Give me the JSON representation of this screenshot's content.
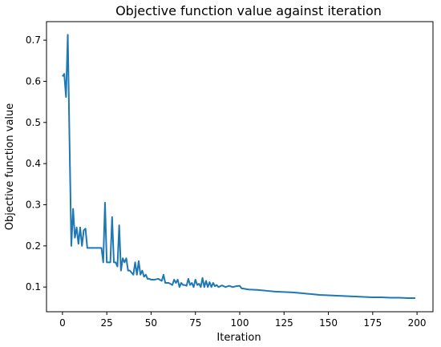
{
  "chart_data": {
    "type": "line",
    "title": "Objective function value against iteration",
    "xlabel": "Iteration",
    "ylabel": "Objective function value",
    "xlim": [
      -9,
      209
    ],
    "ylim": [
      0.04,
      0.745
    ],
    "xticks": [
      0,
      25,
      50,
      75,
      100,
      125,
      150,
      175,
      200
    ],
    "yticks": [
      0.1,
      0.2,
      0.3,
      0.4,
      0.5,
      0.6,
      0.7
    ],
    "xtick_labels": [
      "0",
      "25",
      "50",
      "75",
      "100",
      "125",
      "150",
      "175",
      "200"
    ],
    "ytick_labels": [
      "0.1",
      "0.2",
      "0.3",
      "0.4",
      "0.5",
      "0.6",
      "0.7"
    ],
    "grid": false,
    "legend": false,
    "series": [
      {
        "color": "#1f77b4",
        "x": [
          0,
          1,
          2,
          3,
          4,
          5,
          6,
          7,
          8,
          9,
          10,
          11,
          12,
          13,
          14,
          15,
          16,
          17,
          18,
          19,
          20,
          21,
          22,
          23,
          24,
          25,
          26,
          27,
          28,
          29,
          30,
          31,
          32,
          33,
          34,
          35,
          36,
          37,
          38,
          39,
          40,
          41,
          42,
          43,
          44,
          45,
          46,
          47,
          48,
          49,
          50,
          52,
          54,
          56,
          57,
          58,
          60,
          62,
          63,
          64,
          65,
          66,
          67,
          68,
          69,
          70,
          71,
          72,
          73,
          74,
          75,
          76,
          77,
          78,
          79,
          80,
          81,
          82,
          83,
          84,
          85,
          86,
          87,
          88,
          89,
          90,
          92,
          94,
          96,
          98,
          100,
          101,
          105,
          110,
          115,
          120,
          125,
          130,
          135,
          140,
          145,
          150,
          155,
          160,
          165,
          170,
          175,
          180,
          185,
          190,
          195,
          199
        ],
        "y": [
          0.612,
          0.618,
          0.562,
          0.713,
          0.45,
          0.2,
          0.29,
          0.22,
          0.245,
          0.205,
          0.245,
          0.2,
          0.238,
          0.242,
          0.195,
          0.195,
          0.195,
          0.195,
          0.195,
          0.195,
          0.195,
          0.195,
          0.195,
          0.16,
          0.305,
          0.16,
          0.16,
          0.16,
          0.27,
          0.16,
          0.16,
          0.15,
          0.25,
          0.14,
          0.17,
          0.16,
          0.17,
          0.14,
          0.14,
          0.135,
          0.13,
          0.16,
          0.13,
          0.163,
          0.13,
          0.14,
          0.125,
          0.13,
          0.12,
          0.12,
          0.118,
          0.118,
          0.12,
          0.115,
          0.13,
          0.11,
          0.11,
          0.105,
          0.118,
          0.11,
          0.118,
          0.1,
          0.11,
          0.105,
          0.105,
          0.103,
          0.12,
          0.105,
          0.11,
          0.1,
          0.118,
          0.105,
          0.108,
          0.1,
          0.122,
          0.1,
          0.115,
          0.1,
          0.112,
          0.1,
          0.11,
          0.102,
          0.105,
          0.1,
          0.102,
          0.104,
          0.1,
          0.103,
          0.1,
          0.102,
          0.103,
          0.097,
          0.094,
          0.093,
          0.091,
          0.089,
          0.088,
          0.087,
          0.085,
          0.083,
          0.081,
          0.08,
          0.079,
          0.078,
          0.077,
          0.076,
          0.075,
          0.075,
          0.074,
          0.074,
          0.073,
          0.073
        ]
      }
    ]
  }
}
